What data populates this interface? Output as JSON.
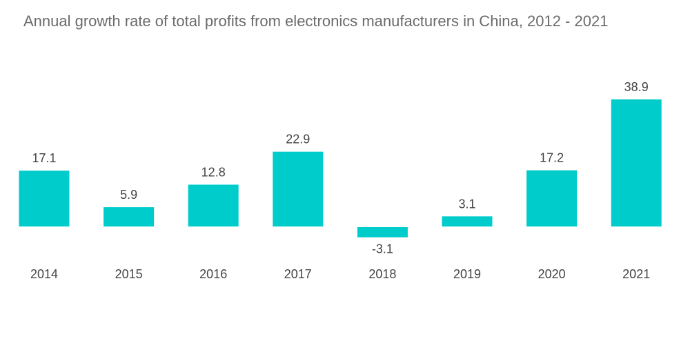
{
  "chart_data": {
    "type": "bar",
    "title": "Annual growth rate of total profits from electronics manufacturers in China, 2012 - 2021",
    "categories": [
      "2014",
      "2015",
      "2016",
      "2017",
      "2018",
      "2019",
      "2020",
      "2021"
    ],
    "values": [
      17.1,
      5.9,
      12.8,
      22.9,
      -3.1,
      3.1,
      17.2,
      38.9
    ],
    "xlabel": "",
    "ylabel": "",
    "ylim": [
      -3.1,
      38.9
    ],
    "grid": false,
    "data_labels": true,
    "bar_color": "#00CCCC"
  }
}
